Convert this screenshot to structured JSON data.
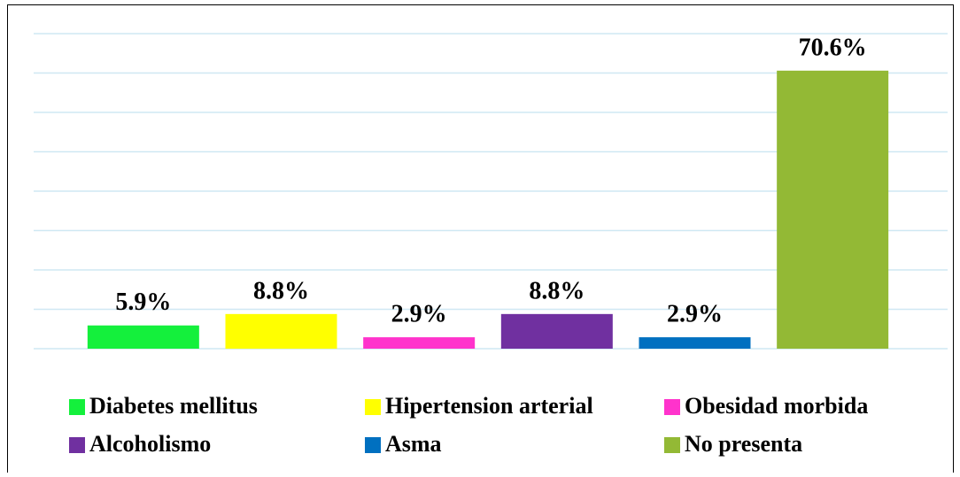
{
  "chart_data": {
    "type": "bar",
    "categories": [
      "Diabetes mellitus",
      "Hipertension arterial",
      "Obesidad morbida",
      "Alcoholismo",
      "Asma",
      "No presenta"
    ],
    "values": [
      5.9,
      8.8,
      2.9,
      8.8,
      2.9,
      70.6
    ],
    "value_labels": [
      "5.9%",
      "8.8%",
      "2.9%",
      "8.8%",
      "2.9%",
      "70.6%"
    ],
    "colors": [
      "#14f03c",
      "#ffff00",
      "#ff33cc",
      "#7030a0",
      "#0070c0",
      "#93b935"
    ],
    "ylim": [
      0,
      80
    ],
    "yticks": [
      0,
      10,
      20,
      30,
      40,
      50,
      60,
      70,
      80
    ],
    "grid": true,
    "legend": "bottom"
  }
}
